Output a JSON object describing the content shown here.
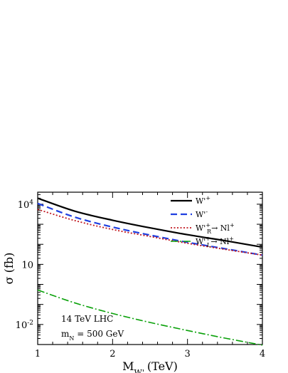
{
  "chart_data": {
    "type": "line",
    "xlabel": "M",
    "xlabel_sub": "W'",
    "xlabel_unit": "(TeV)",
    "ylabel": "σ (fb)",
    "xlim": [
      1,
      4
    ],
    "ylim_log10": [
      -3,
      4.6
    ],
    "y_scale": "log",
    "x_ticks": [
      {
        "value": 1,
        "label": "1"
      },
      {
        "value": 2,
        "label": "2"
      },
      {
        "value": 3,
        "label": "3"
      },
      {
        "value": 4,
        "label": "4"
      }
    ],
    "y_ticks": [
      {
        "exp": 4,
        "base": "10",
        "sup": "4"
      },
      {
        "exp": 1,
        "base": "10",
        "sup": ""
      },
      {
        "exp": -2,
        "base": "10",
        "sup": "-2"
      }
    ],
    "legend_position": "top-right",
    "annotations": {
      "line1": "14 TeV LHC",
      "line2_main": "m",
      "line2_sub": "N",
      "line2_rest": " = 500 GeV"
    },
    "series": [
      {
        "label_main": "W'",
        "label_sup": "+",
        "label_sub": "",
        "label_tail": "",
        "label_tail_sup": "",
        "color": "#000000",
        "dash": "",
        "width": 2.2,
        "x": [
          1,
          1.5,
          2,
          2.5,
          3,
          3.5,
          4
        ],
        "log10_y": [
          4.3,
          3.65,
          3.2,
          2.82,
          2.48,
          2.18,
          1.86
        ]
      },
      {
        "label_main": "W'",
        "label_sup": "-",
        "label_sub": "",
        "label_tail": "",
        "label_tail_sup": "",
        "color": "#1f3fe0",
        "dash": "9,5",
        "width": 2.2,
        "x": [
          1,
          1.5,
          2,
          2.5,
          3,
          3.5,
          4
        ],
        "log10_y": [
          4.04,
          3.35,
          2.86,
          2.46,
          2.1,
          1.78,
          1.46
        ]
      },
      {
        "label_main": "W'",
        "label_sup": "+",
        "label_sub": "R",
        "label_tail": "→ Nl",
        "label_tail_sup": "+",
        "color": "#c0161e",
        "dash": "2,2.5",
        "width": 1.8,
        "x": [
          1,
          1.5,
          2,
          2.5,
          3,
          3.5,
          4
        ],
        "log10_y": [
          3.74,
          3.18,
          2.74,
          2.39,
          2.05,
          1.75,
          1.46
        ]
      },
      {
        "label_main": "W'",
        "label_sup": "+",
        "label_sub": "L",
        "label_tail": "→ Nl",
        "label_tail_sup": "+",
        "color": "#0aa10a",
        "dash": "10,3,2,3",
        "width": 1.6,
        "x": [
          1,
          1.5,
          2,
          2.5,
          3,
          3.5,
          4
        ],
        "log10_y": [
          -0.28,
          -0.93,
          -1.45,
          -1.9,
          -2.3,
          -2.68,
          -3.03
        ]
      }
    ]
  }
}
